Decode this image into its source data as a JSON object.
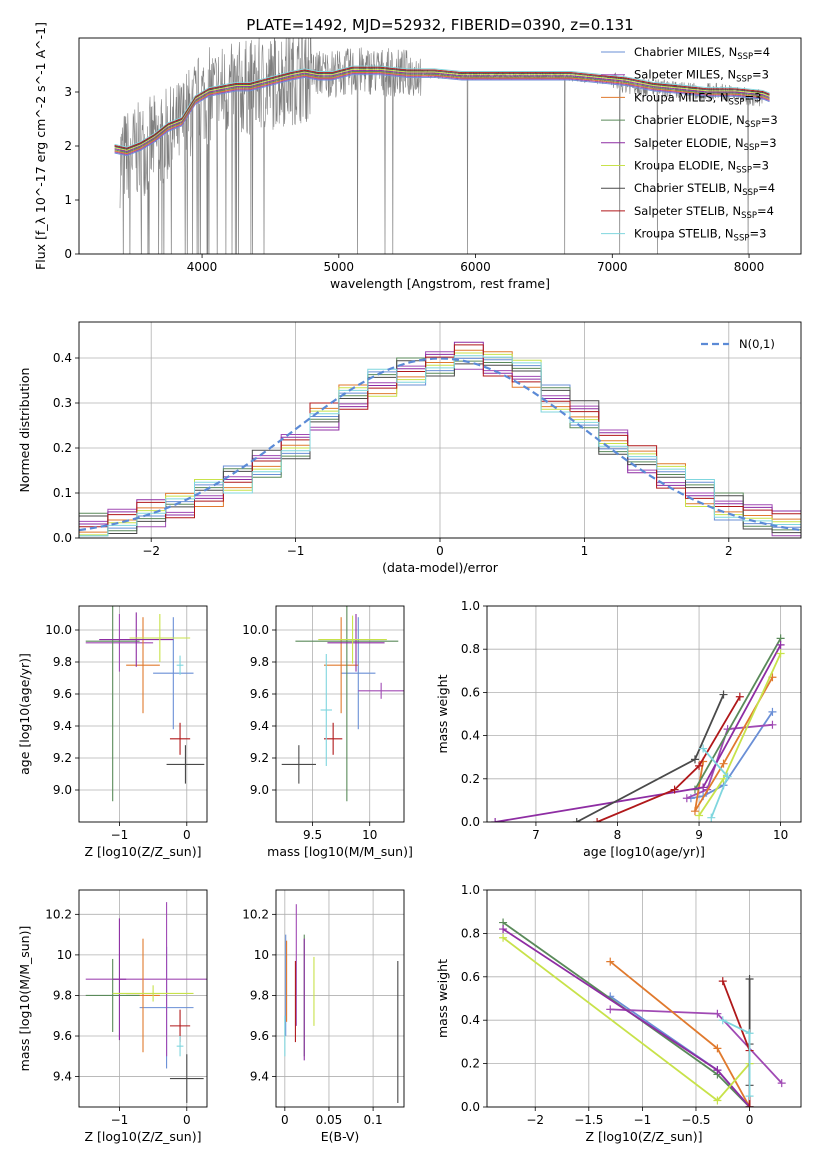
{
  "figure": {
    "title": "PLATE=1492, MJD=52932, FIBERID=0390, z=0.131"
  },
  "colors": [
    "#6a8fd6",
    "#a04ab4",
    "#e07a2e",
    "#5a8a5a",
    "#8e2da3",
    "#c8e24a",
    "#4a4a4a",
    "#b0181a",
    "#7fd6de"
  ],
  "chart_data": [
    {
      "type": "line",
      "id": "spectrum",
      "xlabel": "wavelength [Angstrom, rest frame]",
      "ylabel": "Flux [f_λ 10^-17 erg cm^-2 s^-1 A^-1]",
      "xlim": [
        3100,
        8380
      ],
      "ylim": [
        0,
        4
      ],
      "xticks": [
        4000,
        5000,
        6000,
        7000,
        8000
      ],
      "yticks": [
        0,
        1,
        2,
        3
      ],
      "grid": false,
      "legend_position": "upper-right",
      "legend": [
        "Chabrier MILES, N_SSP=4",
        "Salpeter MILES, N_SSP=3",
        "Kroupa MILES, N_SSP=3",
        "Chabrier ELODIE, N_SSP=3",
        "Salpeter ELODIE, N_SSP=3",
        "Kroupa ELODIE, N_SSP=3",
        "Chabrier STELIB, N_SSP=4",
        "Salpeter STELIB, N_SSP=4",
        "Kroupa STELIB, N_SSP=3"
      ],
      "data_series": {
        "name": "observed",
        "x": [
          3400,
          3600,
          3800,
          4000,
          4200,
          4400,
          4600,
          4800,
          5000,
          5200,
          5400,
          5600,
          5800,
          6000,
          6200,
          6400,
          6600,
          6800,
          7000,
          7200,
          7400,
          7600,
          7800,
          8000,
          8100
        ],
        "y": [
          1.75,
          2.0,
          2.25,
          2.9,
          3.05,
          3.1,
          3.25,
          3.35,
          3.35,
          3.4,
          3.35,
          3.35,
          3.3,
          3.3,
          3.3,
          3.3,
          3.3,
          3.25,
          3.2,
          3.1,
          3.05,
          3.0,
          3.0,
          2.9,
          2.9
        ]
      },
      "model_x": [
        3360,
        3450,
        3550,
        3650,
        3750,
        3850,
        3950,
        4050,
        4150,
        4250,
        4350,
        4500,
        4650,
        4750,
        4850,
        4950,
        5100,
        5300,
        5500,
        5700,
        5900,
        6100,
        6300,
        6500,
        6700,
        6900,
        7100,
        7300,
        7500,
        7700,
        7900,
        8100,
        8150
      ],
      "model_y": [
        1.95,
        1.9,
        2.0,
        2.15,
        2.35,
        2.45,
        2.85,
        3.0,
        3.05,
        3.1,
        3.1,
        3.2,
        3.3,
        3.35,
        3.3,
        3.3,
        3.4,
        3.4,
        3.35,
        3.35,
        3.3,
        3.3,
        3.3,
        3.3,
        3.3,
        3.25,
        3.2,
        3.1,
        3.05,
        3.0,
        3.0,
        2.95,
        2.9
      ]
    },
    {
      "type": "line",
      "id": "residual-hist",
      "xlabel": "(data-model)/error",
      "ylabel": "Normed distribution",
      "xlim": [
        -2.5,
        2.5
      ],
      "ylim": [
        0,
        0.48
      ],
      "xticks": [
        -2,
        -1,
        0,
        1,
        2
      ],
      "yticks": [
        0.0,
        0.1,
        0.2,
        0.3,
        0.4
      ],
      "grid": true,
      "legend_position": "upper-right",
      "gaussian_label": "N(0,1)",
      "bins": [
        -2.5,
        -2.3,
        -2.1,
        -1.9,
        -1.7,
        -1.5,
        -1.3,
        -1.1,
        -0.9,
        -0.7,
        -0.5,
        -0.3,
        -0.1,
        0.1,
        0.3,
        0.5,
        0.7,
        0.9,
        1.1,
        1.3,
        1.5,
        1.7,
        1.9,
        2.1,
        2.3,
        2.5
      ],
      "hist": [
        0.025,
        0.04,
        0.055,
        0.075,
        0.1,
        0.13,
        0.165,
        0.2,
        0.27,
        0.31,
        0.345,
        0.37,
        0.39,
        0.405,
        0.39,
        0.365,
        0.31,
        0.275,
        0.21,
        0.175,
        0.135,
        0.1,
        0.07,
        0.05,
        0.03
      ]
    },
    {
      "type": "scatter",
      "id": "age-vs-Z",
      "xlabel": "Z [log10(Z/Z_sun)]",
      "ylabel": "age  [log10(age/yr)]",
      "xlim": [
        -1.6,
        0.3
      ],
      "ylim": [
        8.8,
        10.15
      ],
      "xticks": [
        -1,
        0
      ],
      "yticks": [
        9.0,
        9.2,
        9.4,
        9.6,
        9.8,
        10.0
      ],
      "grid": true,
      "points": [
        {
          "x": -0.2,
          "y": 9.73,
          "xerr": 0.3,
          "yerr": 0.35
        },
        {
          "x": -1.0,
          "y": 9.92,
          "xerr": 0.5,
          "yerr": 0.18
        },
        {
          "x": -0.65,
          "y": 9.78,
          "xerr": 0.25,
          "yerr": 0.3
        },
        {
          "x": -1.1,
          "y": 9.93,
          "xerr": 0.4,
          "yerr": 1.0
        },
        {
          "x": -0.75,
          "y": 9.94,
          "xerr": 0.55,
          "yerr": 0.17
        },
        {
          "x": -0.4,
          "y": 9.95,
          "xerr": 0.45,
          "yerr": 0.15
        },
        {
          "x": -0.02,
          "y": 9.16,
          "xerr": 0.28,
          "yerr": 0.12
        },
        {
          "x": -0.1,
          "y": 9.32,
          "xerr": 0.15,
          "yerr": 0.1
        },
        {
          "x": -0.1,
          "y": 9.78,
          "xerr": 0.05,
          "yerr": 0.06
        }
      ]
    },
    {
      "type": "scatter",
      "id": "age-vs-mass",
      "xlabel": "mass [log10(M/M_sun)]",
      "ylabel": "",
      "xlim": [
        9.18,
        10.3
      ],
      "ylim": [
        8.8,
        10.15
      ],
      "xticks": [
        9.5,
        10.0
      ],
      "yticks": [
        9.0,
        9.2,
        9.4,
        9.6,
        9.8,
        10.0
      ],
      "grid": true,
      "points": [
        {
          "x": 9.9,
          "y": 9.73,
          "xerr": 0.15,
          "yerr": 0.35
        },
        {
          "x": 10.1,
          "y": 9.62,
          "xerr": 0.2,
          "yerr": 0.05
        },
        {
          "x": 9.75,
          "y": 9.78,
          "xerr": 0.15,
          "yerr": 0.3
        },
        {
          "x": 9.8,
          "y": 9.93,
          "xerr": 0.45,
          "yerr": 1.0
        },
        {
          "x": 9.88,
          "y": 9.92,
          "xerr": 0.25,
          "yerr": 0.18
        },
        {
          "x": 9.85,
          "y": 9.94,
          "xerr": 0.3,
          "yerr": 0.15
        },
        {
          "x": 9.38,
          "y": 9.16,
          "xerr": 0.15,
          "yerr": 0.12
        },
        {
          "x": 9.68,
          "y": 9.32,
          "xerr": 0.08,
          "yerr": 0.1
        },
        {
          "x": 9.62,
          "y": 9.5,
          "xerr": 0.05,
          "yerr": 0.35
        }
      ]
    },
    {
      "type": "line",
      "id": "mass-weight-vs-age",
      "xlabel": "age  [log10(age/yr)]",
      "ylabel": "mass weight",
      "xlim": [
        6.4,
        10.25
      ],
      "ylim": [
        0,
        1.0
      ],
      "xticks": [
        7,
        8,
        9,
        10
      ],
      "yticks": [
        0.0,
        0.2,
        0.4,
        0.6,
        0.8,
        1.0
      ],
      "grid": true,
      "series": [
        {
          "x": [
            9.9,
            9.3,
            9.05,
            8.9
          ],
          "y": [
            0.51,
            0.17,
            0.12,
            0.11
          ]
        },
        {
          "x": [
            9.9,
            9.35,
            9.1,
            8.85
          ],
          "y": [
            0.45,
            0.43,
            0.15,
            0.11
          ]
        },
        {
          "x": [
            9.9,
            9.3,
            8.95,
            9.05
          ],
          "y": [
            0.67,
            0.27,
            0.05,
            0.28
          ]
        },
        {
          "x": [
            10.0,
            8.95
          ],
          "y": [
            0.85,
            0.15
          ]
        },
        {
          "x": [
            10.0,
            9.05,
            6.5
          ],
          "y": [
            0.82,
            0.16,
            0.0
          ]
        },
        {
          "x": [
            10.0,
            9.3,
            9.0
          ],
          "y": [
            0.78,
            0.2,
            0.03
          ]
        },
        {
          "x": [
            9.3,
            8.95,
            7.5
          ],
          "y": [
            0.59,
            0.29,
            0.0
          ]
        },
        {
          "x": [
            9.5,
            9.0,
            8.7,
            7.75
          ],
          "y": [
            0.58,
            0.26,
            0.15,
            0.0
          ]
        },
        {
          "x": [
            9.05,
            9.35,
            9.15
          ],
          "y": [
            0.34,
            0.21,
            0.02
          ]
        }
      ]
    },
    {
      "type": "scatter",
      "id": "mass-vs-Z",
      "xlabel": "Z [log10(Z/Z_sun)]",
      "ylabel": "mass [log10(M/M_sun)]",
      "xlim": [
        -1.6,
        0.3
      ],
      "ylim": [
        9.25,
        10.32
      ],
      "xticks": [
        -1,
        0
      ],
      "yticks": [
        9.4,
        9.6,
        9.8,
        10.0,
        10.2
      ],
      "grid": true,
      "points": [
        {
          "x": -0.3,
          "y": 9.74,
          "xerr": 0.4,
          "yerr": 0.3
        },
        {
          "x": -0.3,
          "y": 9.88,
          "xerr": 1.2,
          "yerr": 0.38
        },
        {
          "x": -0.65,
          "y": 9.8,
          "xerr": 0.25,
          "yerr": 0.28
        },
        {
          "x": -1.1,
          "y": 9.8,
          "xerr": 0.4,
          "yerr": 0.18
        },
        {
          "x": -1.0,
          "y": 9.88,
          "xerr": 0.1,
          "yerr": 0.3
        },
        {
          "x": -0.5,
          "y": 9.81,
          "xerr": 0.6,
          "yerr": 0.04
        },
        {
          "x": 0.0,
          "y": 9.39,
          "xerr": 0.25,
          "yerr": 0.12
        },
        {
          "x": -0.1,
          "y": 9.65,
          "xerr": 0.15,
          "yerr": 0.08
        },
        {
          "x": -0.1,
          "y": 9.55,
          "xerr": 0.05,
          "yerr": 0.05
        }
      ]
    },
    {
      "type": "scatter",
      "id": "mass-vs-EBV",
      "xlabel": "E(B-V)",
      "ylabel": "",
      "xlim": [
        -0.01,
        0.135
      ],
      "ylim": [
        9.25,
        10.32
      ],
      "xticks": [
        0.0,
        0.05,
        0.1
      ],
      "yticks": [
        9.4,
        9.6,
        9.8,
        10.0,
        10.2
      ],
      "grid": true,
      "points": [
        {
          "x": 0.001,
          "y": 9.85,
          "xerr": 0.0,
          "yerr": 0.25
        },
        {
          "x": 0.013,
          "y": 9.95,
          "xerr": 0.0,
          "yerr": 0.3
        },
        {
          "x": 0.002,
          "y": 9.87,
          "xerr": 0.0,
          "yerr": 0.2
        },
        {
          "x": 0.022,
          "y": 9.8,
          "xerr": 0.0,
          "yerr": 0.3
        },
        {
          "x": 0.022,
          "y": 9.78,
          "xerr": 0.0,
          "yerr": 0.3
        },
        {
          "x": 0.033,
          "y": 9.82,
          "xerr": 0.0,
          "yerr": 0.17
        },
        {
          "x": 0.128,
          "y": 9.62,
          "xerr": 0.0,
          "yerr": 0.35
        },
        {
          "x": 0.012,
          "y": 9.77,
          "xerr": 0.0,
          "yerr": 0.2
        },
        {
          "x": 0.0,
          "y": 9.6,
          "xerr": 0.0,
          "yerr": 0.1
        }
      ]
    },
    {
      "type": "line",
      "id": "mass-weight-vs-Z",
      "xlabel": "Z [log10(Z/Z_sun)]",
      "ylabel": "mass weight",
      "xlim": [
        -2.45,
        0.48
      ],
      "ylim": [
        0,
        1.0
      ],
      "xticks": [
        -2.0,
        -1.5,
        -1.0,
        -0.5,
        0.0
      ],
      "yticks": [
        0.0,
        0.2,
        0.4,
        0.6,
        0.8,
        1.0
      ],
      "grid": true,
      "series": [
        {
          "x": [
            -1.3,
            -0.3,
            0.0
          ],
          "y": [
            0.51,
            0.17,
            0.0
          ]
        },
        {
          "x": [
            -1.3,
            -0.3,
            0.3
          ],
          "y": [
            0.45,
            0.43,
            0.11
          ]
        },
        {
          "x": [
            -1.3,
            -0.3,
            0.0
          ],
          "y": [
            0.67,
            0.27,
            0.0
          ]
        },
        {
          "x": [
            -2.3,
            -0.3,
            0.0
          ],
          "y": [
            0.85,
            0.15,
            0.0
          ]
        },
        {
          "x": [
            -2.3,
            -0.3,
            0.0
          ],
          "y": [
            0.82,
            0.17,
            0.0
          ]
        },
        {
          "x": [
            -2.3,
            -0.3,
            0.0
          ],
          "y": [
            0.78,
            0.03,
            0.2
          ]
        },
        {
          "x": [
            0.0,
            0.0,
            0.0,
            0.0
          ],
          "y": [
            0.59,
            0.29,
            0.1,
            0.0
          ]
        },
        {
          "x": [
            -0.25,
            0.0,
            0.0
          ],
          "y": [
            0.58,
            0.26,
            0.0
          ]
        },
        {
          "x": [
            -0.25,
            0.0,
            0.0
          ],
          "y": [
            0.4,
            0.34,
            0.05
          ]
        }
      ]
    }
  ]
}
